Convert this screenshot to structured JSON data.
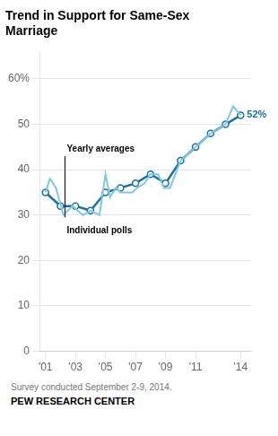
{
  "chart_data": {
    "type": "line",
    "title": [
      "Trend in Support for Same-Sex",
      "Marriage"
    ],
    "subtitle": "Survey conducted September 2-9, 2014.",
    "footer": "PEW RESEARCH CENTER",
    "series": [
      {
        "name": "Individual polls",
        "color": "#7ec8e3",
        "marker": "none",
        "x": [
          2001.0,
          2001.3,
          2001.7,
          2002.2,
          2002.8,
          2003.5,
          2004.0,
          2004.6,
          2005.0,
          2005.3,
          2005.7,
          2006.0,
          2006.4,
          2006.8,
          2007.1,
          2007.6,
          2008.0,
          2008.5,
          2008.9,
          2009.3,
          2010.0,
          2011.0,
          2012.0,
          2013.0,
          2013.5,
          2014.0
        ],
        "values": [
          35,
          38,
          36,
          30,
          32,
          30,
          31,
          30,
          39,
          34,
          36,
          35,
          35,
          35,
          36,
          37,
          39,
          39,
          36,
          36,
          42,
          45,
          48,
          50,
          54,
          52
        ]
      },
      {
        "name": "Yearly averages",
        "color": "#1a6fa0",
        "marker": "circle",
        "x": [
          2001,
          2002,
          2003,
          2004,
          2005,
          2006,
          2007,
          2008,
          2009,
          2010,
          2011,
          2012,
          2013,
          2014
        ],
        "values": [
          35,
          32,
          32,
          31,
          35,
          36,
          37,
          39,
          37,
          42,
          45,
          48,
          50,
          52
        ]
      }
    ],
    "annotations": [
      {
        "text": "52%",
        "x": 2014,
        "y": 52
      }
    ],
    "xlim": [
      2000.6,
      2014.7
    ],
    "xticks": [
      {
        "value": 2001,
        "label": "'01"
      },
      {
        "value": 2003,
        "label": "'03"
      },
      {
        "value": 2005,
        "label": "'05"
      },
      {
        "value": 2007,
        "label": "'07"
      },
      {
        "value": 2009,
        "label": "'09"
      },
      {
        "value": 2011,
        "label": "'11"
      },
      {
        "value": 2014,
        "label": "'14"
      }
    ],
    "ylim": [
      0,
      66
    ],
    "yticks": [
      0,
      10,
      20,
      30,
      40,
      50,
      {
        "value": 60,
        "label": "60%"
      }
    ],
    "grid": true
  }
}
